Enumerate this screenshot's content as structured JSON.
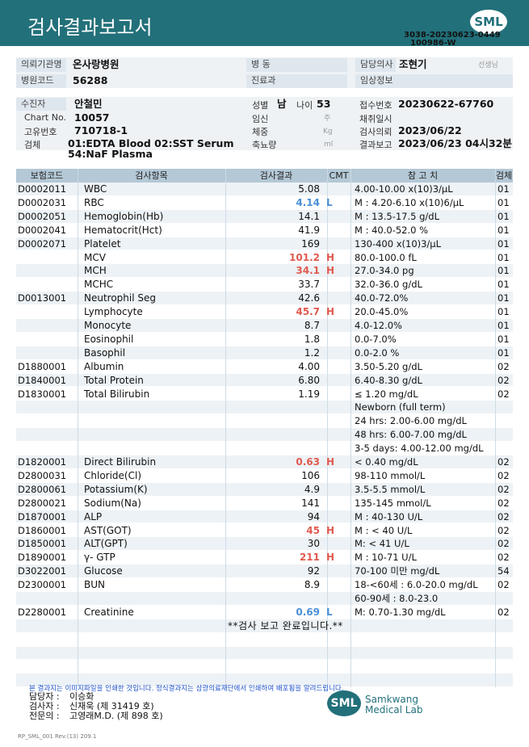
{
  "header": {
    "title": "검사결과보고서",
    "logo": "SML",
    "report_id": "3038-20230623-0449",
    "code": "100986-W"
  },
  "info": {
    "institution": {
      "label": "의뢰기관명",
      "value": "온사랑병원"
    },
    "ward": {
      "label": "병 동"
    },
    "doctor": {
      "label": "담당의사",
      "value": "조현기",
      "suffix": "선생님"
    },
    "hospital_code": {
      "label": "병원코드",
      "value": "56288"
    },
    "department": {
      "label": "진료과"
    },
    "clinical_info": {
      "label": "임상정보"
    },
    "patient": {
      "label": "수진자",
      "value": "안철민"
    },
    "sex": {
      "label": "성별",
      "value": "남"
    },
    "age": {
      "label": "나이",
      "value": "53"
    },
    "receipt_no": {
      "label": "접수번호",
      "value": "20230622-67760"
    },
    "chart_no": {
      "label": "Chart No.",
      "value": "10057"
    },
    "pregnancy": {
      "label": "임신",
      "unit": "주"
    },
    "collection_time": {
      "label": "채취일시"
    },
    "id_no": {
      "label": "고유번호",
      "value": "710718-1"
    },
    "weight": {
      "label": "체중",
      "unit": "Kg"
    },
    "request_date": {
      "label": "검사의뢰",
      "value": "2023/06/22"
    },
    "specimen": {
      "label": "검체",
      "value_lines": [
        "01:EDTA Blood 02:SST Serum",
        "54:NaF Plasma"
      ]
    },
    "urine_volume": {
      "label": "축뇨량",
      "unit": "ml"
    },
    "report_date": {
      "label": "결과보고",
      "value": "2023/06/23 04시32분"
    }
  },
  "table": {
    "headers": [
      "보험코드",
      "검사항목",
      "검사결과",
      "CMT",
      "참 고 치",
      "검체"
    ],
    "flag_colors": {
      "H": "#e05a4f",
      "L": "#4a8fd6"
    },
    "rows": [
      {
        "code": "D0002011",
        "item": "WBC",
        "result": "5.08",
        "reference": "4.00-10.00 x(10)3/μL",
        "specimen": "01"
      },
      {
        "code": "D0002031",
        "item": "RBC",
        "result": "4.14",
        "flag": "L",
        "reference": "M : 4.20-6.10 x(10)6/μL",
        "specimen": "01"
      },
      {
        "code": "D0002051",
        "item": "Hemoglobin(Hb)",
        "result": "14.1",
        "reference": "M : 13.5-17.5 g/dL",
        "specimen": "01"
      },
      {
        "code": "D0002041",
        "item": "Hematocrit(Hct)",
        "result": "41.9",
        "reference": "M : 40.0-52.0 %",
        "specimen": "01"
      },
      {
        "code": "D0002071",
        "item": "Platelet",
        "result": "169",
        "reference": "130-400 x(10)3/μL",
        "specimen": "01"
      },
      {
        "item": "MCV",
        "result": "101.2",
        "flag": "H",
        "reference": "80.0-100.0 fL",
        "specimen": "01"
      },
      {
        "item": "MCH",
        "result": "34.1",
        "flag": "H",
        "reference": "27.0-34.0 pg",
        "specimen": "01"
      },
      {
        "item": "MCHC",
        "result": "33.7",
        "reference": "32.0-36.0 g/dL",
        "specimen": "01"
      },
      {
        "code": "D0013001",
        "item": "Neutrophil Seg",
        "result": "42.6",
        "reference": "40.0-72.0%",
        "specimen": "01"
      },
      {
        "item": "Lymphocyte",
        "result": "45.7",
        "flag": "H",
        "reference": "20.0-45.0%",
        "specimen": "01"
      },
      {
        "item": "Monocyte",
        "result": "8.7",
        "reference": "4.0-12.0%",
        "specimen": "01"
      },
      {
        "item": "Eosinophil",
        "result": "1.8",
        "reference": "0.0-7.0%",
        "specimen": "01"
      },
      {
        "item": "Basophil",
        "result": "1.2",
        "reference": "0.0-2.0 %",
        "specimen": "01"
      },
      {
        "code": "D1880001",
        "item": "Albumin",
        "result": "4.00",
        "reference": "3.50-5.20 g/dL",
        "specimen": "02"
      },
      {
        "code": "D1840001",
        "item": "Total Protein",
        "result": "6.80",
        "reference": "6.40-8.30 g/dL",
        "specimen": "02"
      },
      {
        "code": "D1830001",
        "item": "Total Bilirubin",
        "result": "1.19",
        "reference": "≤ 1.20 mg/dL",
        "specimen": "02"
      },
      {
        "reference": "Newborn (full term)"
      },
      {
        "reference": "24 hrs: 2.00-6.00 mg/dL"
      },
      {
        "reference": "48 hrs: 6.00-7.00 mg/dL"
      },
      {
        "reference": "3-5 days: 4.00-12.00 mg/dL"
      },
      {
        "code": "D1820001",
        "item": "Direct Bilirubin",
        "result": "0.63",
        "flag": "H",
        "reference": "< 0.40 mg/dL",
        "specimen": "02"
      },
      {
        "code": "D2800031",
        "item": "Chloride(Cl)",
        "result": "106",
        "reference": "98-110 mmol/L",
        "specimen": "02"
      },
      {
        "code": "D2800061",
        "item": "Potassium(K)",
        "result": "4.9",
        "reference": "3.5-5.5 mmol/L",
        "specimen": "02"
      },
      {
        "code": "D2800021",
        "item": "Sodium(Na)",
        "result": "141",
        "reference": "135-145 mmol/L",
        "specimen": "02"
      },
      {
        "code": "D1870001",
        "item": "ALP",
        "result": "94",
        "reference": "M : 40-130 U/L",
        "specimen": "02"
      },
      {
        "code": "D1860001",
        "item": "AST(GOT)",
        "result": "45",
        "flag": "H",
        "reference": "M : < 40 U/L",
        "specimen": "02"
      },
      {
        "code": "D1850001",
        "item": "ALT(GPT)",
        "result": "30",
        "reference": "M: < 41 U/L",
        "specimen": "02"
      },
      {
        "code": "D1890001",
        "item": "γ- GTP",
        "result": "211",
        "flag": "H",
        "reference": "M : 10-71 U/L",
        "specimen": "02"
      },
      {
        "code": "D3022001",
        "item": "Glucose",
        "result": "92",
        "reference": "70-100 미만 mg/dL",
        "specimen": "54"
      },
      {
        "code": "D2300001",
        "item": "BUN",
        "result": "8.9",
        "reference": "18-<60세 : 6.0-20.0 mg/dL",
        "specimen": "02"
      },
      {
        "reference": "60-90세 : 8.0-23.0"
      },
      {
        "code": "D2280001",
        "item": "Creatinine",
        "result": "0.69",
        "flag": "L",
        "reference": "M: 0.70-1.30 mg/dL",
        "specimen": "02"
      },
      {
        "note": "**검사 보고 완료입니다.**"
      }
    ]
  },
  "footer": {
    "notice": "본 결과지는 이미지파일을 인쇄한 것입니다. 정식결과지는 삼광의료재단에서 인쇄하여 배포됨을 알려드립니다.",
    "staff": [
      {
        "role": "담당자 :",
        "name": "이승화"
      },
      {
        "role": "검사자 :",
        "name": "신재욱 (제 31419 호)"
      },
      {
        "role": "전문의 :",
        "name": "고영래M.D. (제 898 호)"
      }
    ],
    "logo": "SML",
    "company": [
      "Samkwang",
      "Medical Lab"
    ],
    "form_no": "RP_SML_001 Rev.(13) 209.1"
  }
}
